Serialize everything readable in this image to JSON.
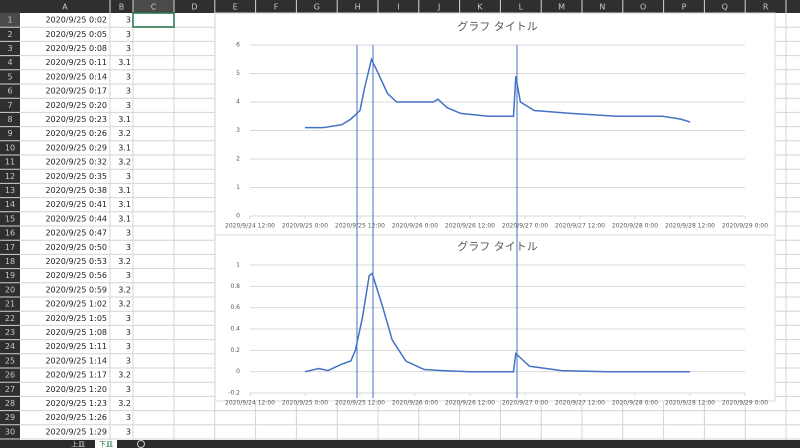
{
  "spreadsheet": {
    "columns": [
      "A",
      "B",
      "C",
      "D",
      "E",
      "F",
      "G",
      "H",
      "I",
      "J",
      "K",
      "L",
      "M",
      "N",
      "O",
      "P",
      "Q",
      "R"
    ],
    "rows": [
      [
        1,
        "2020/9/25 0:02",
        3
      ],
      [
        2,
        "2020/9/25 0:05",
        3
      ],
      [
        3,
        "2020/9/25 0:08",
        3
      ],
      [
        4,
        "2020/9/25 0:11",
        3.1
      ],
      [
        5,
        "2020/9/25 0:14",
        3
      ],
      [
        6,
        "2020/9/25 0:17",
        3
      ],
      [
        7,
        "2020/9/25 0:20",
        3
      ],
      [
        8,
        "2020/9/25 0:23",
        3.1
      ],
      [
        9,
        "2020/9/25 0:26",
        3.2
      ],
      [
        10,
        "2020/9/25 0:29",
        3.1
      ],
      [
        11,
        "2020/9/25 0:32",
        3.2
      ],
      [
        12,
        "2020/9/25 0:35",
        3
      ],
      [
        13,
        "2020/9/25 0:38",
        3.1
      ],
      [
        14,
        "2020/9/25 0:41",
        3.1
      ],
      [
        15,
        "2020/9/25 0:44",
        3.1
      ],
      [
        16,
        "2020/9/25 0:47",
        3
      ],
      [
        17,
        "2020/9/25 0:50",
        3
      ],
      [
        18,
        "2020/9/25 0:53",
        3.2
      ],
      [
        19,
        "2020/9/25 0:56",
        3
      ],
      [
        20,
        "2020/9/25 0:59",
        3.2
      ],
      [
        21,
        "2020/9/25 1:02",
        3.2
      ],
      [
        22,
        "2020/9/25 1:05",
        3
      ],
      [
        23,
        "2020/9/25 1:08",
        3
      ],
      [
        24,
        "2020/9/25 1:11",
        3
      ],
      [
        25,
        "2020/9/25 1:14",
        3
      ],
      [
        26,
        "2020/9/25 1:17",
        3.2
      ],
      [
        27,
        "2020/9/25 1:20",
        3
      ],
      [
        28,
        "2020/9/25 1:23",
        3.2
      ],
      [
        29,
        "2020/9/25 1:26",
        3
      ],
      [
        30,
        "2020/9/25 1:29",
        3
      ]
    ],
    "sheet_tabs": [
      "上皿",
      "下皿"
    ]
  },
  "chart_data": [
    {
      "type": "line",
      "title": "グラフ タイトル",
      "color": "#4472c4",
      "x": [
        "2020/9/25 0:00",
        "2020/9/25 4:00",
        "2020/9/25 8:00",
        "2020/9/25 10:00",
        "2020/9/25 12:00",
        "2020/9/25 13:00",
        "2020/9/25 14:30",
        "2020/9/25 16:00",
        "2020/9/25 18:00",
        "2020/9/25 20:00",
        "2020/9/26 0:00",
        "2020/9/26 4:00",
        "2020/9/26 5:00",
        "2020/9/26 7:00",
        "2020/9/26 10:00",
        "2020/9/26 16:00",
        "2020/9/26 21:30",
        "2020/9/26 22:00",
        "2020/9/26 23:00",
        "2020/9/27 2:00",
        "2020/9/27 10:00",
        "2020/9/27 20:00",
        "2020/9/28 6:00",
        "2020/9/28 10:00",
        "2020/9/28 12:00"
      ],
      "values": [
        3.1,
        3.1,
        3.2,
        3.4,
        3.7,
        4.5,
        5.5,
        5.0,
        4.3,
        4.0,
        4.0,
        4.0,
        4.1,
        3.8,
        3.6,
        3.5,
        3.5,
        4.9,
        4.0,
        3.7,
        3.6,
        3.5,
        3.5,
        3.4,
        3.3
      ],
      "xlim": [
        "2020/9/24 12:00",
        "2020/9/29 0:00"
      ],
      "xticks": [
        "2020/9/24 12:00",
        "2020/9/25 0:00",
        "2020/9/25 12:00",
        "2020/9/26 0:00",
        "2020/9/26 12:00",
        "2020/9/27 0:00",
        "2020/9/27 12:00",
        "2020/9/28 0:00",
        "2020/9/28 12:00",
        "2020/9/29 0:00"
      ],
      "ylim": [
        0,
        6
      ],
      "yticks": [
        0,
        1,
        2,
        3,
        4,
        5,
        6
      ],
      "grid": true
    },
    {
      "type": "line",
      "title": "グラフ タイトル",
      "color": "#4472c4",
      "x": [
        "2020/9/25 0:00",
        "2020/9/25 3:00",
        "2020/9/25 5:00",
        "2020/9/25 8:00",
        "2020/9/25 10:00",
        "2020/9/25 11:00",
        "2020/9/25 12:30",
        "2020/9/25 14:00",
        "2020/9/25 14:40",
        "2020/9/25 17:00",
        "2020/9/25 19:00",
        "2020/9/25 22:00",
        "2020/9/26 2:00",
        "2020/9/26 6:00",
        "2020/9/26 12:00",
        "2020/9/26 21:30",
        "2020/9/26 22:00",
        "2020/9/27 1:00",
        "2020/9/27 8:00",
        "2020/9/27 18:00",
        "2020/9/28 12:00"
      ],
      "values": [
        0,
        0.03,
        0.01,
        0.07,
        0.1,
        0.2,
        0.5,
        0.9,
        0.92,
        0.6,
        0.3,
        0.1,
        0.02,
        0.01,
        0,
        0,
        0.17,
        0.05,
        0.01,
        0,
        0
      ],
      "xlim": [
        "2020/9/24 12:00",
        "2020/9/29 0:00"
      ],
      "xticks": [
        "2020/9/24 12:00",
        "2020/9/25 0:00",
        "2020/9/25 12:00",
        "2020/9/26 0:00",
        "2020/9/26 12:00",
        "2020/9/27 0:00",
        "2020/9/27 12:00",
        "2020/9/28 0:00",
        "2020/9/28 12:00",
        "2020/9/29 0:00"
      ],
      "ylim": [
        -0.2,
        1
      ],
      "yticks": [
        -0.2,
        0,
        0.2,
        0.4,
        0.6,
        0.8,
        1
      ],
      "grid": true
    }
  ]
}
